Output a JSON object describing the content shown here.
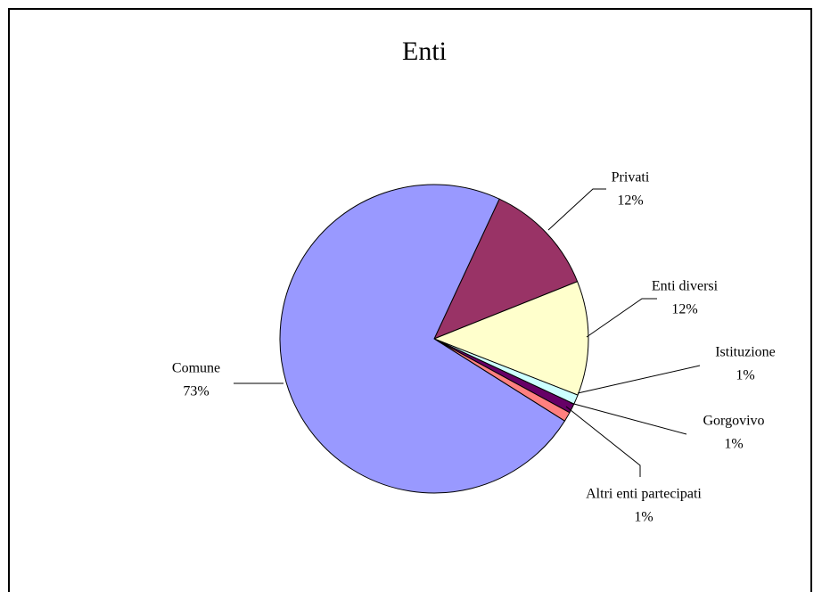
{
  "chart_data": {
    "type": "pie",
    "title": "Enti",
    "categories": [
      "Privati",
      "Enti diversi",
      "Istituzione",
      "Gorgovivo",
      "Altri enti partecipati",
      "Comune"
    ],
    "values": [
      12,
      12,
      1,
      1,
      1,
      73
    ],
    "value_labels": [
      "12%",
      "12%",
      "1%",
      "1%",
      "1%",
      "73%"
    ],
    "colors": [
      "#993366",
      "#ffffcc",
      "#ccffff",
      "#660066",
      "#ff8080",
      "#9999ff"
    ],
    "startangle": 25
  }
}
